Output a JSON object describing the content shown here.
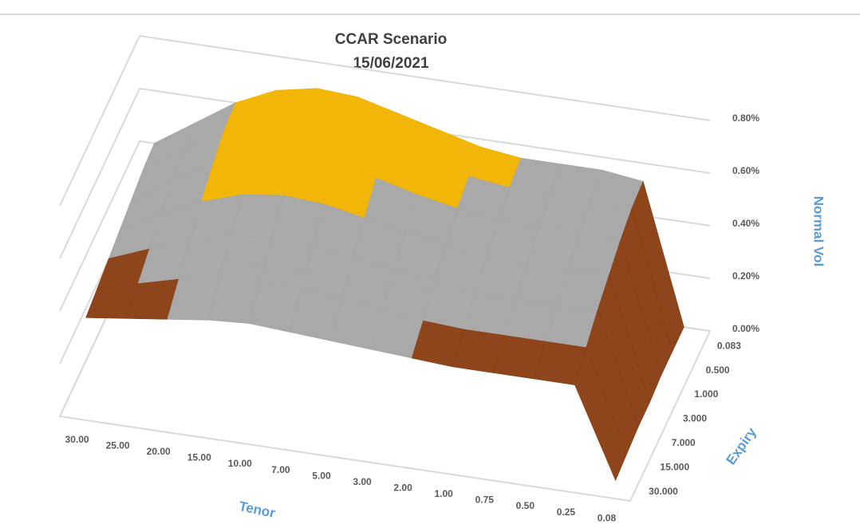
{
  "chart_data": {
    "type": "surface",
    "title": "CCAR Scenario",
    "subtitle": "15/06/2021",
    "x_label": "Tenor",
    "y_label": "Expiry",
    "z_label": "Normal Vol",
    "x": [
      "30.00",
      "25.00",
      "20.00",
      "15.00",
      "10.00",
      "7.00",
      "5.00",
      "3.00",
      "2.00",
      "1.00",
      "0.75",
      "0.50",
      "0.25",
      "0.08"
    ],
    "y": [
      "0.083",
      "0.500",
      "1.000",
      "3.000",
      "7.000",
      "15.000",
      "30.000"
    ],
    "values": [
      [
        0.45,
        0.55,
        0.65,
        0.72,
        0.75,
        0.74,
        0.7,
        0.66,
        0.62,
        0.6,
        0.6,
        0.6,
        0.58,
        0.05
      ],
      [
        0.44,
        0.54,
        0.64,
        0.7,
        0.73,
        0.72,
        0.68,
        0.64,
        0.6,
        0.58,
        0.58,
        0.58,
        0.57,
        0.05
      ],
      [
        0.42,
        0.52,
        0.6,
        0.66,
        0.68,
        0.67,
        0.64,
        0.6,
        0.57,
        0.55,
        0.55,
        0.55,
        0.54,
        0.05
      ],
      [
        0.4,
        0.48,
        0.55,
        0.6,
        0.62,
        0.61,
        0.58,
        0.55,
        0.52,
        0.5,
        0.5,
        0.5,
        0.5,
        0.04
      ],
      [
        0.38,
        0.44,
        0.5,
        0.54,
        0.55,
        0.54,
        0.52,
        0.5,
        0.48,
        0.46,
        0.46,
        0.46,
        0.46,
        0.04
      ],
      [
        0.36,
        0.4,
        0.44,
        0.47,
        0.48,
        0.47,
        0.46,
        0.44,
        0.42,
        0.41,
        0.41,
        0.41,
        0.41,
        0.03
      ],
      [
        0.34,
        0.36,
        0.38,
        0.4,
        0.41,
        0.4,
        0.39,
        0.38,
        0.37,
        0.36,
        0.36,
        0.36,
        0.36,
        0.02
      ]
    ],
    "zlim": [
      0,
      0.8
    ],
    "zticks": [
      {
        "value": 0,
        "label": "0.00%"
      },
      {
        "value": 0.2,
        "label": "0.20%"
      },
      {
        "value": 0.4,
        "label": "0.40%"
      },
      {
        "value": 0.6,
        "label": "0.60%"
      },
      {
        "value": 0.8,
        "label": "0.80%"
      }
    ],
    "band_colors": [
      "#4f81bd",
      "#8a3f14",
      "#a6a6a6",
      "#f2b400"
    ],
    "grid": true
  }
}
